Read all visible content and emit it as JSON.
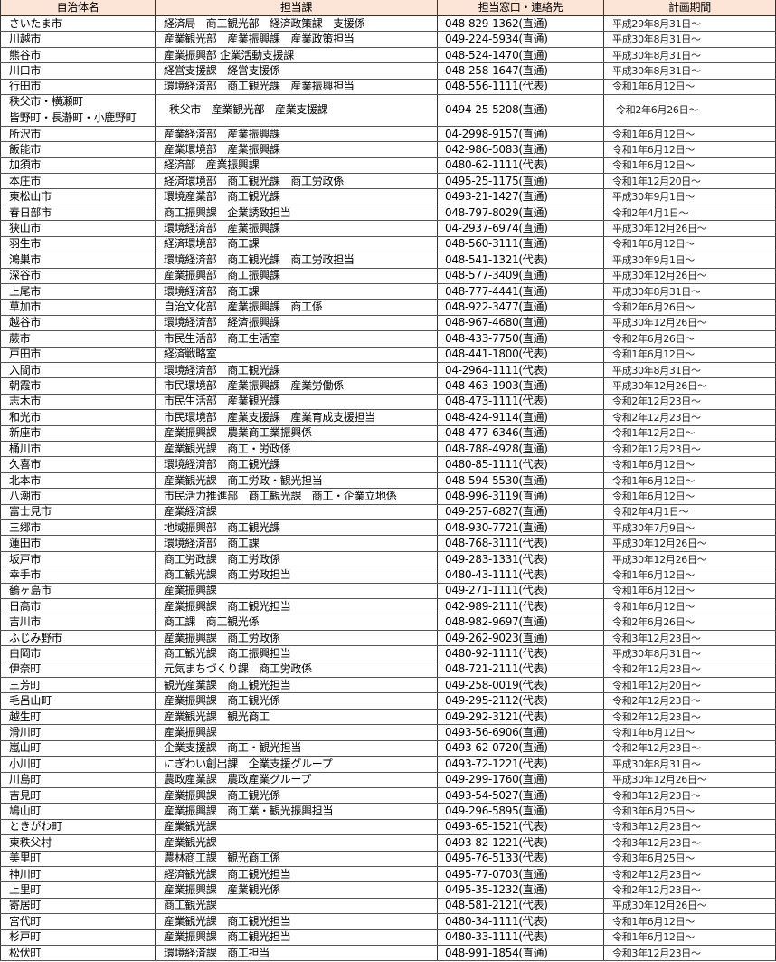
{
  "headers": [
    "自治体名",
    "担当課",
    "担当窓口・連絡先",
    "計画期間"
  ],
  "colors": {
    "header_bg": "#fce4d6",
    "border": "#333333"
  },
  "rows": [
    {
      "name": "さいたま市",
      "dept": "経済局　商工観光部　経済政策課　支援係",
      "contact": "048-829-1362(直通)",
      "period": "平成29年8月31日～"
    },
    {
      "name": "川越市",
      "dept": "産業観光部　産業振興課　産業政策担当",
      "contact": "049-224-5934(直通)",
      "period": "平成30年8月31日～"
    },
    {
      "name": "熊谷市",
      "dept": "産業振興部 企業活動支援課",
      "contact": "048-524-1470(直通)",
      "period": "平成30年8月31日～"
    },
    {
      "name": "川口市",
      "dept": "経営支援課　経営支援係",
      "contact": "048-258-1647(直通)",
      "period": "平成30年8月31日～"
    },
    {
      "name": "行田市",
      "dept": "環境経済部　商工観光課　産業振興担当",
      "contact": "048-556-1111(代表)",
      "period": "令和1年6月12日～"
    },
    {
      "name": "秩父市・横瀬町",
      "name2": "皆野町・長瀞町・小鹿野町",
      "dept": "秩父市　産業観光部　産業支援課",
      "contact": "0494-25-5208(直通)",
      "period": "令和2年6月26日～"
    },
    {
      "name": "所沢市",
      "dept": "産業経済部　産業振興課",
      "contact": "04-2998-9157(直通)",
      "period": "令和1年6月12日～"
    },
    {
      "name": "飯能市",
      "dept": "産業環境部　産業振興課",
      "contact": "042-986-5083(直通)",
      "period": "令和1年6月12日～"
    },
    {
      "name": "加須市",
      "dept": "経済部　産業振興課",
      "contact": "0480-62-1111(代表)",
      "period": "令和1年6月12日～"
    },
    {
      "name": "本庄市",
      "dept": "経済環境部　商工観光課　商工労政係",
      "contact": "0495-25-1175(直通)",
      "period": "令和1年12月20日～"
    },
    {
      "name": "東松山市",
      "dept": "環境産業部　商工観光課",
      "contact": "0493-21-1427(直通)",
      "period": "平成30年9月1日～"
    },
    {
      "name": "春日部市",
      "dept": "商工振興課　企業誘致担当",
      "contact": "048-797-8029(直通)",
      "period": "令和2年4月1日～"
    },
    {
      "name": "狭山市",
      "dept": "環境経済部　産業振興課",
      "contact": "04-2937-6974(直通)",
      "period": "平成30年12月26日～"
    },
    {
      "name": "羽生市",
      "dept": "経済環境部　商工課",
      "contact": "048-560-3111(直通)",
      "period": "令和1年6月12日～"
    },
    {
      "name": "鴻巣市",
      "dept": "環境経済部　商工観光課　商工労政担当",
      "contact": "048-541-1321(代表)",
      "period": "平成30年9月1日～"
    },
    {
      "name": "深谷市",
      "dept": "産業振興部　商工振興課",
      "contact": "048-577-3409(直通)",
      "period": "平成30年12月26日～"
    },
    {
      "name": "上尾市",
      "dept": "環境経済部　商工課",
      "contact": "048-777-4441(直通)",
      "period": "平成30年8月31日～"
    },
    {
      "name": "草加市",
      "dept": "自治文化部　産業振興課　商工係",
      "contact": "048-922-3477(直通)",
      "period": "令和2年6月26日～"
    },
    {
      "name": "越谷市",
      "dept": "環境経済部　経済振興課",
      "contact": "048-967-4680(直通)",
      "period": "平成30年12月26日～"
    },
    {
      "name": "蕨市",
      "dept": "市民生活部　商工生活室",
      "contact": "048-433-7750(直通)",
      "period": "令和2年6月26日～"
    },
    {
      "name": "戸田市",
      "dept": "経済戦略室",
      "contact": "048-441-1800(代表)",
      "period": "令和1年6月12日～"
    },
    {
      "name": "入間市",
      "dept": "環境経済部　商工観光課",
      "contact": "04-2964-1111(代表)",
      "period": "平成30年8月31日～"
    },
    {
      "name": "朝霞市",
      "dept": "市民環境部　産業振興課　産業労働係",
      "contact": "048-463-1903(直通)",
      "period": "平成30年12月26日～"
    },
    {
      "name": "志木市",
      "dept": "市民生活部　産業観光課",
      "contact": "048-473-1111(代表)",
      "period": "令和2年12月23日～"
    },
    {
      "name": "和光市",
      "dept": "市民環境部　産業支援課　産業育成支援担当",
      "contact": "048-424-9114(直通)",
      "period": "令和2年12月23日～"
    },
    {
      "name": "新座市",
      "dept": "産業振興課　農業商工業振興係",
      "contact": "048-477-6346(直通)",
      "period": "令和1年12月2日～"
    },
    {
      "name": "桶川市",
      "dept": "産業観光課　商工・労政係",
      "contact": "048-788-4928(直通)",
      "period": "令和2年12月23日～"
    },
    {
      "name": "久喜市",
      "dept": "環境経済部　商工観光課",
      "contact": "0480-85-1111(代表)",
      "period": "令和1年6月12日～"
    },
    {
      "name": "北本市",
      "dept": "産業観光課　商工労政・観光担当",
      "contact": "048-594-5530(直通)",
      "period": "令和1年6月12日～"
    },
    {
      "name": "八潮市",
      "dept": "市民活力推進部　商工観光課　商工・企業立地係",
      "contact": "048-996-3119(直通)",
      "period": "令和1年6月12日～"
    },
    {
      "name": "富士見市",
      "dept": "産業経済課",
      "contact": "049-257-6827(直通)",
      "period": "令和2年4月1日～"
    },
    {
      "name": "三郷市",
      "dept": "地域振興部　商工観光課",
      "contact": "048-930-7721(直通)",
      "period": "平成30年7月9日～"
    },
    {
      "name": "蓮田市",
      "dept": "環境経済部　商工課",
      "contact": "048-768-3111(代表)",
      "period": "平成30年12月26日～"
    },
    {
      "name": "坂戸市",
      "dept": "商工労政課　商工労政係",
      "contact": "049-283-1331(代表)",
      "period": "平成30年12月26日～"
    },
    {
      "name": "幸手市",
      "dept": "商工観光課　商工労政担当",
      "contact": "0480-43-1111(代表)",
      "period": "令和1年6月12日～"
    },
    {
      "name": "鶴ヶ島市",
      "dept": "産業振興課",
      "contact": "049-271-1111(代表)",
      "period": "令和1年6月12日～"
    },
    {
      "name": "日高市",
      "dept": "産業振興課　商工観光担当",
      "contact": "042-989-2111(代表)",
      "period": "令和1年6月12日～"
    },
    {
      "name": "吉川市",
      "dept": "商工課　商工観光係",
      "contact": "048-982-9697(直通)",
      "period": "令和2年6月26日～"
    },
    {
      "name": "ふじみ野市",
      "dept": "産業振興課　商工労政係",
      "contact": "049-262-9023(直通)",
      "period": "令和3年12月23日～"
    },
    {
      "name": "白岡市",
      "dept": "商工観光課　商工振興担当",
      "contact": "0480-92-1111(代表)",
      "period": "平成30年8月31日～"
    },
    {
      "name": "伊奈町",
      "dept": "元気まちづくり課　商工労政係",
      "contact": "048-721-2111(代表)",
      "period": "令和2年12月23日～"
    },
    {
      "name": "三芳町",
      "dept": "観光産業課　商工観光担当",
      "contact": "049-258-0019(代表)",
      "period": "令和1年12月20日～"
    },
    {
      "name": "毛呂山町",
      "dept": "産業振興課　商工観光係",
      "contact": "049-295-2112(代表)",
      "period": "令和2年12月23日～"
    },
    {
      "name": "越生町",
      "dept": "産業観光課　観光商工",
      "contact": "049-292-3121(代表)",
      "period": "令和2年12月23日～"
    },
    {
      "name": "滑川町",
      "dept": "産業振興課",
      "contact": "0493-56-6906(直通)",
      "period": "令和1年6月12日～"
    },
    {
      "name": "嵐山町",
      "dept": "企業支援課　商工・観光担当",
      "contact": "0493-62-0720(直通)",
      "period": "令和2年12月23日～"
    },
    {
      "name": "小川町",
      "dept": "にぎわい創出課　企業支援グループ",
      "contact": "0493-72-1221(代表)",
      "period": "平成30年8月31日～"
    },
    {
      "name": "川島町",
      "dept": "農政産業課　農政産業グループ",
      "contact": "049-299-1760(直通)",
      "period": "平成30年12月26日～"
    },
    {
      "name": "吉見町",
      "dept": "産業振興課　商工観光係",
      "contact": "0493-54-5027(直通)",
      "period": "令和3年12月23日～"
    },
    {
      "name": "鳩山町",
      "dept": "産業振興課　商工業・観光振興担当",
      "contact": "049-296-5895(直通)",
      "period": "令和3年6月25日～"
    },
    {
      "name": "ときがわ町",
      "dept": "産業観光課",
      "contact": "0493-65-1521(代表)",
      "period": "令和3年12月23日～"
    },
    {
      "name": "東秩父村",
      "dept": "産業観光課",
      "contact": "0493-82-1221(代表)",
      "period": "令和3年12月23日～"
    },
    {
      "name": "美里町",
      "dept": "農林商工課　観光商工係",
      "contact": "0495-76-5133(代表)",
      "period": "令和3年6月25日～"
    },
    {
      "name": "神川町",
      "dept": "経済観光課　商工観光担当",
      "contact": "0495-77-0703(直通)",
      "period": "令和2年12月23日～"
    },
    {
      "name": "上里町",
      "dept": "産業振興課　産業観光係",
      "contact": "0495-35-1232(直通)",
      "period": "令和2年12月23日～"
    },
    {
      "name": "寄居町",
      "dept": "商工観光課",
      "contact": "048-581-2121(代表)",
      "period": "平成30年12月26日～"
    },
    {
      "name": "宮代町",
      "dept": "産業観光課　商工観光担当",
      "contact": "0480-34-1111(代表)",
      "period": "令和1年6月12日～"
    },
    {
      "name": "杉戸町",
      "dept": "産業振興課　商工観光担当",
      "contact": "0480-33-1111(代表)",
      "period": "令和1年6月12日～"
    },
    {
      "name": "松伏町",
      "dept": "環境経済課　商工担当",
      "contact": "048-991-1854(直通)",
      "period": "令和3年12月23日～"
    }
  ]
}
